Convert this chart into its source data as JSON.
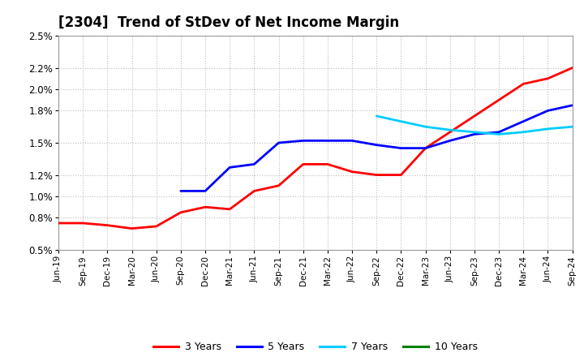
{
  "title": "[2304]  Trend of StDev of Net Income Margin",
  "title_fontsize": 12,
  "background_color": "#ffffff",
  "grid_color": "#aaaaaa",
  "ylim": [
    0.005,
    0.025
  ],
  "ytick_vals": [
    0.005,
    0.008,
    0.01,
    0.012,
    0.015,
    0.018,
    0.02,
    0.022,
    0.025
  ],
  "ytick_labels": [
    "0.5%",
    "0.8%",
    "1.0%",
    "1.2%",
    "1.5%",
    "1.8%",
    "2.0%",
    "2.2%",
    "2.5%"
  ],
  "series": {
    "3 Years": {
      "color": "#ff0000",
      "x_indices": [
        0,
        1,
        2,
        3,
        4,
        5,
        6,
        7,
        8,
        9,
        10,
        11,
        12,
        13,
        14,
        15,
        16,
        17,
        18,
        19,
        20,
        21
      ],
      "values": [
        0.0075,
        0.0075,
        0.0073,
        0.007,
        0.0072,
        0.0085,
        0.009,
        0.0088,
        0.0105,
        0.011,
        0.013,
        0.013,
        0.0123,
        0.012,
        0.012,
        0.0145,
        0.016,
        0.0175,
        0.019,
        0.0205,
        0.021,
        0.022
      ]
    },
    "5 Years": {
      "color": "#0000ff",
      "x_indices": [
        5,
        6,
        7,
        8,
        9,
        10,
        11,
        12,
        13,
        14,
        15,
        16,
        17,
        18,
        19,
        20,
        21
      ],
      "values": [
        0.0105,
        0.0105,
        0.0127,
        0.013,
        0.015,
        0.0152,
        0.0152,
        0.0152,
        0.0148,
        0.0145,
        0.0145,
        0.0152,
        0.0158,
        0.016,
        0.017,
        0.018,
        0.0185
      ]
    },
    "7 Years": {
      "color": "#00ccff",
      "x_indices": [
        13,
        14,
        15,
        16,
        17,
        18,
        19,
        20,
        21
      ],
      "values": [
        0.0175,
        0.017,
        0.0165,
        0.0162,
        0.016,
        0.0158,
        0.016,
        0.0163,
        0.0165
      ]
    },
    "10 Years": {
      "color": "#008000",
      "x_indices": [],
      "values": []
    }
  },
  "xtick_labels": [
    "Jun-19",
    "Sep-19",
    "Dec-19",
    "Mar-20",
    "Jun-20",
    "Sep-20",
    "Dec-20",
    "Mar-21",
    "Jun-21",
    "Sep-21",
    "Dec-21",
    "Mar-22",
    "Jun-22",
    "Sep-22",
    "Dec-22",
    "Mar-23",
    "Jun-23",
    "Sep-23",
    "Dec-23",
    "Mar-24",
    "Jun-24",
    "Sep-24"
  ],
  "legend_labels": [
    "3 Years",
    "5 Years",
    "7 Years",
    "10 Years"
  ],
  "legend_colors": [
    "#ff0000",
    "#0000ff",
    "#00ccff",
    "#008000"
  ]
}
